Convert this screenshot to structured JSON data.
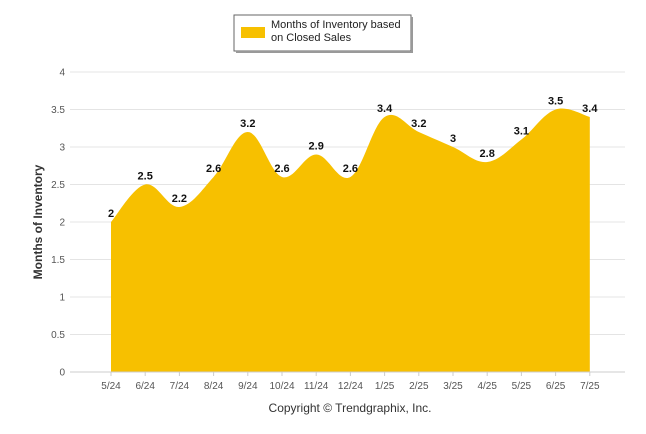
{
  "chart_data": {
    "type": "area",
    "categories": [
      "5/24",
      "6/24",
      "7/24",
      "8/24",
      "9/24",
      "10/24",
      "11/24",
      "12/24",
      "1/25",
      "2/25",
      "3/25",
      "4/25",
      "5/25",
      "6/25",
      "7/25"
    ],
    "series": [
      {
        "name": "Months of Inventory based on Closed Sales",
        "values": [
          2,
          2.5,
          2.2,
          2.6,
          3.2,
          2.6,
          2.9,
          2.6,
          3.4,
          3.2,
          3,
          2.8,
          3.1,
          3.5,
          3.4
        ]
      }
    ],
    "value_labels": [
      "2",
      "2.5",
      "2.2",
      "2.6",
      "3.2",
      "2.6",
      "2.9",
      "2.6",
      "3.4",
      "3.2",
      "3",
      "2.8",
      "3.1",
      "3.5",
      "3.4"
    ],
    "ylabel": "Months of Inventory",
    "ylim": [
      0,
      4
    ],
    "yticks": [
      "0",
      "0.5",
      "1",
      "1.5",
      "2",
      "2.5",
      "3",
      "3.5",
      "4"
    ],
    "grid": true,
    "legend_position": "top-center",
    "legend_lines": [
      "Months of Inventory based",
      "on Closed Sales"
    ],
    "color": "#F7C000",
    "credit": "Copyright © Trendgraphix, Inc."
  }
}
